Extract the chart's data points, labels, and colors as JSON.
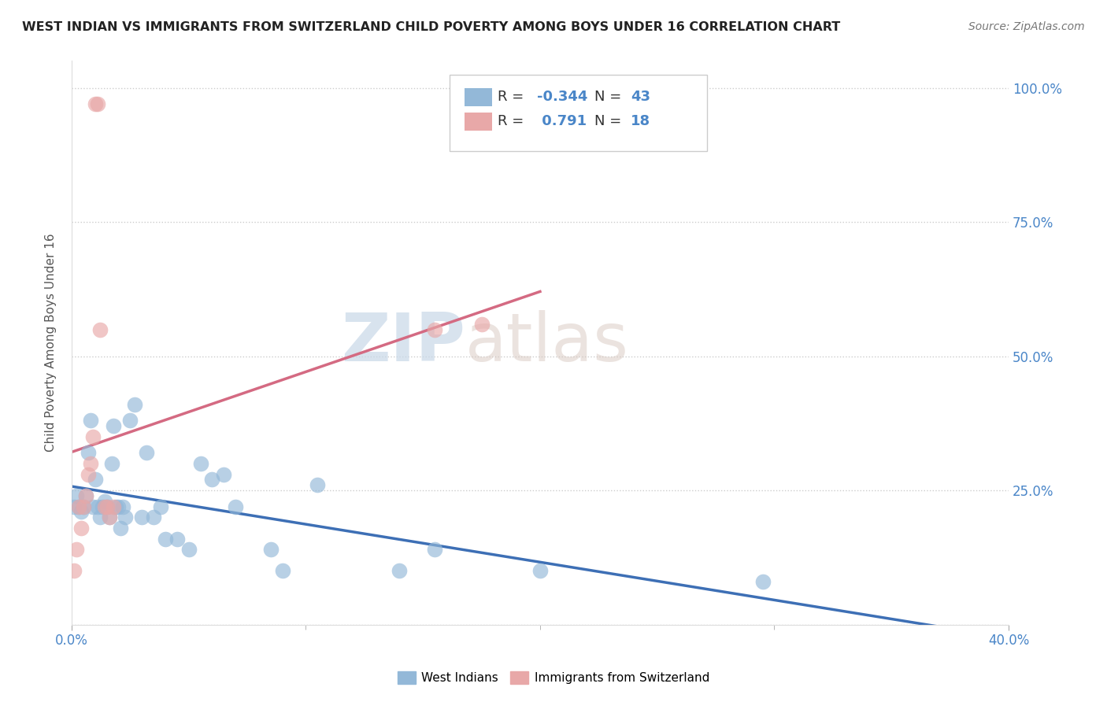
{
  "title": "WEST INDIAN VS IMMIGRANTS FROM SWITZERLAND CHILD POVERTY AMONG BOYS UNDER 16 CORRELATION CHART",
  "source": "Source: ZipAtlas.com",
  "ylabel": "Child Poverty Among Boys Under 16",
  "xlim": [
    0.0,
    0.4
  ],
  "ylim": [
    0.0,
    1.05
  ],
  "x_ticks": [
    0.0,
    0.1,
    0.2,
    0.3,
    0.4
  ],
  "x_tick_labels": [
    "0.0%",
    "",
    "",
    "",
    "40.0%"
  ],
  "y_ticks": [
    0.0,
    0.25,
    0.5,
    0.75,
    1.0
  ],
  "y_tick_labels_right": [
    "",
    "25.0%",
    "50.0%",
    "75.0%",
    "100.0%"
  ],
  "blue_color": "#93b8d8",
  "pink_color": "#e8a8a8",
  "blue_line_color": "#3d6fb5",
  "pink_line_color": "#d46a82",
  "r_blue": -0.344,
  "n_blue": 43,
  "r_pink": 0.791,
  "n_pink": 18,
  "watermark_zip": "ZIP",
  "watermark_atlas": "atlas",
  "legend_label_blue": "West Indians",
  "legend_label_pink": "Immigrants from Switzerland",
  "blue_x": [
    0.001,
    0.002,
    0.003,
    0.004,
    0.005,
    0.006,
    0.007,
    0.008,
    0.009,
    0.01,
    0.011,
    0.012,
    0.013,
    0.014,
    0.015,
    0.016,
    0.017,
    0.018,
    0.019,
    0.02,
    0.021,
    0.022,
    0.023,
    0.025,
    0.027,
    0.03,
    0.032,
    0.035,
    0.038,
    0.04,
    0.045,
    0.05,
    0.055,
    0.06,
    0.065,
    0.07,
    0.085,
    0.09,
    0.105,
    0.14,
    0.155,
    0.2,
    0.295
  ],
  "blue_y": [
    0.22,
    0.24,
    0.22,
    0.21,
    0.22,
    0.24,
    0.32,
    0.38,
    0.22,
    0.27,
    0.22,
    0.2,
    0.22,
    0.23,
    0.22,
    0.2,
    0.3,
    0.37,
    0.22,
    0.22,
    0.18,
    0.22,
    0.2,
    0.38,
    0.41,
    0.2,
    0.32,
    0.2,
    0.22,
    0.16,
    0.16,
    0.14,
    0.3,
    0.27,
    0.28,
    0.22,
    0.14,
    0.1,
    0.26,
    0.1,
    0.14,
    0.1,
    0.08
  ],
  "pink_x": [
    0.001,
    0.002,
    0.003,
    0.004,
    0.005,
    0.006,
    0.007,
    0.008,
    0.009,
    0.01,
    0.011,
    0.012,
    0.014,
    0.015,
    0.016,
    0.018,
    0.155,
    0.175
  ],
  "pink_y": [
    0.1,
    0.14,
    0.22,
    0.18,
    0.22,
    0.24,
    0.28,
    0.3,
    0.35,
    0.97,
    0.97,
    0.55,
    0.22,
    0.22,
    0.2,
    0.22,
    0.55,
    0.56
  ],
  "grid_color": "#cccccc",
  "tick_color": "#4a86c8",
  "ylabel_color": "#555555",
  "title_color": "#222222"
}
